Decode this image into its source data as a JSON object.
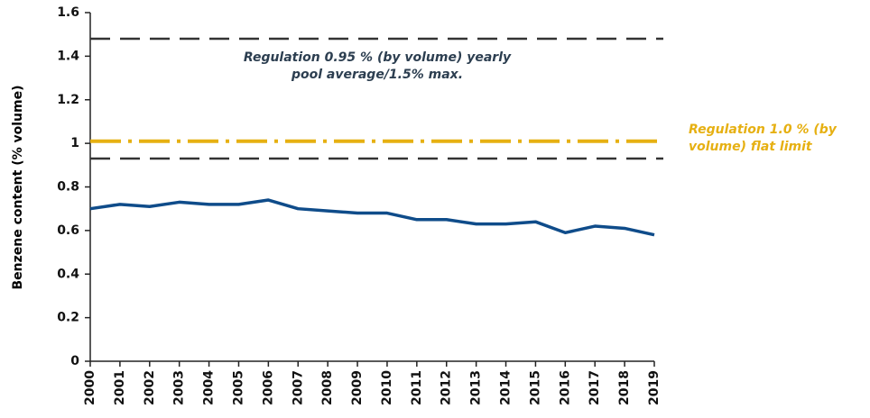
{
  "chart_data": {
    "type": "line",
    "y_label": "Benzene content (% volume)",
    "categories": [
      "2000",
      "2001",
      "2002",
      "2003",
      "2004",
      "2005",
      "2006",
      "2007",
      "2008",
      "2009",
      "2010",
      "2011",
      "2012",
      "2013",
      "2014",
      "2015",
      "2016",
      "2017",
      "2018",
      "2019"
    ],
    "series": [
      {
        "color": "#0f4c8a",
        "values": [
          0.7,
          0.72,
          0.71,
          0.73,
          0.72,
          0.72,
          0.74,
          0.7,
          0.69,
          0.68,
          0.68,
          0.65,
          0.65,
          0.63,
          0.63,
          0.64,
          0.59,
          0.62,
          0.61,
          0.58
        ]
      }
    ],
    "ylim": [
      0,
      1.6
    ],
    "yticks": [
      0,
      0.2,
      0.4,
      0.6,
      0.8,
      1,
      1.2,
      1.4,
      1.6
    ],
    "reference_lines": [
      {
        "value": 1.48,
        "color": "#333333",
        "style": "dashed"
      },
      {
        "value": 1.01,
        "color": "#e6b012",
        "style": "dashdot"
      },
      {
        "value": 0.93,
        "color": "#333333",
        "style": "dashed"
      }
    ],
    "annotations": [
      {
        "lines": [
          "Regulation 0.95 % (by volume) yearly",
          "pool average/1.5% max."
        ],
        "color": "#2c3e50"
      },
      {
        "lines": [
          "Regulation 1.0 % (by",
          "volume) flat limit"
        ],
        "color": "#e6b012"
      }
    ]
  }
}
